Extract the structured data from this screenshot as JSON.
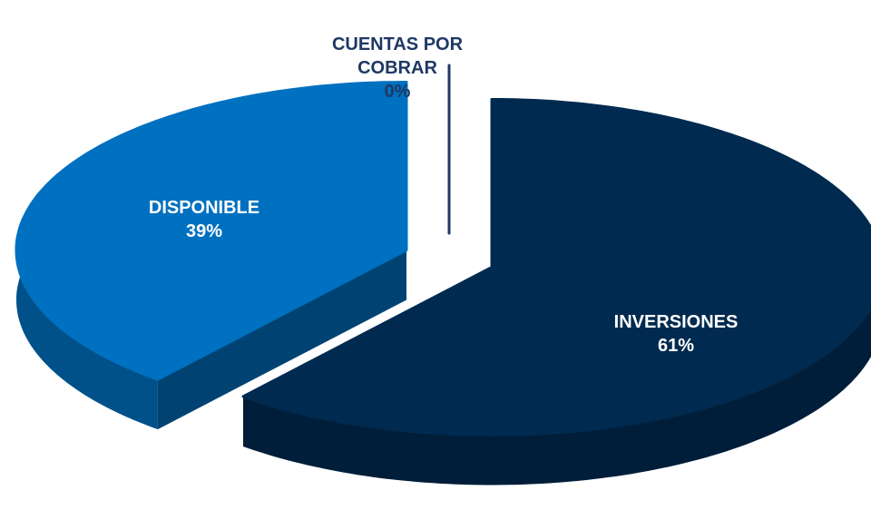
{
  "chart_data": {
    "type": "pie",
    "categories": [
      "DISPONIBLE",
      "CUENTAS POR COBRAR",
      "INVERSIONES"
    ],
    "values": [
      39,
      0,
      61
    ],
    "value_labels": [
      "39%",
      "0%",
      "61%"
    ],
    "colors": [
      "#0070c0",
      "#1f3864",
      "#002a4f"
    ]
  }
}
